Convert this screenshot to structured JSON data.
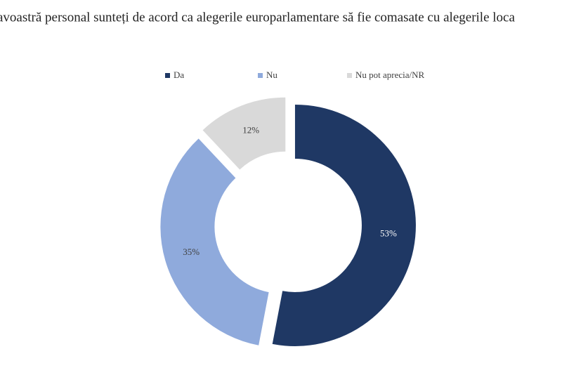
{
  "chart_data": {
    "type": "pie",
    "title": "avoastră personal sunteți de acord ca alegerile europarlamentare să fie comasate cu alegerile loca",
    "categories": [
      "Da",
      "Nu",
      "Nu pot aprecia/NR"
    ],
    "values": [
      53,
      35,
      12
    ],
    "value_labels": [
      "53%",
      "35%",
      "12%"
    ],
    "colors": [
      "#1f3864",
      "#8faadc",
      "#d9d9d9"
    ],
    "legend": "top"
  }
}
